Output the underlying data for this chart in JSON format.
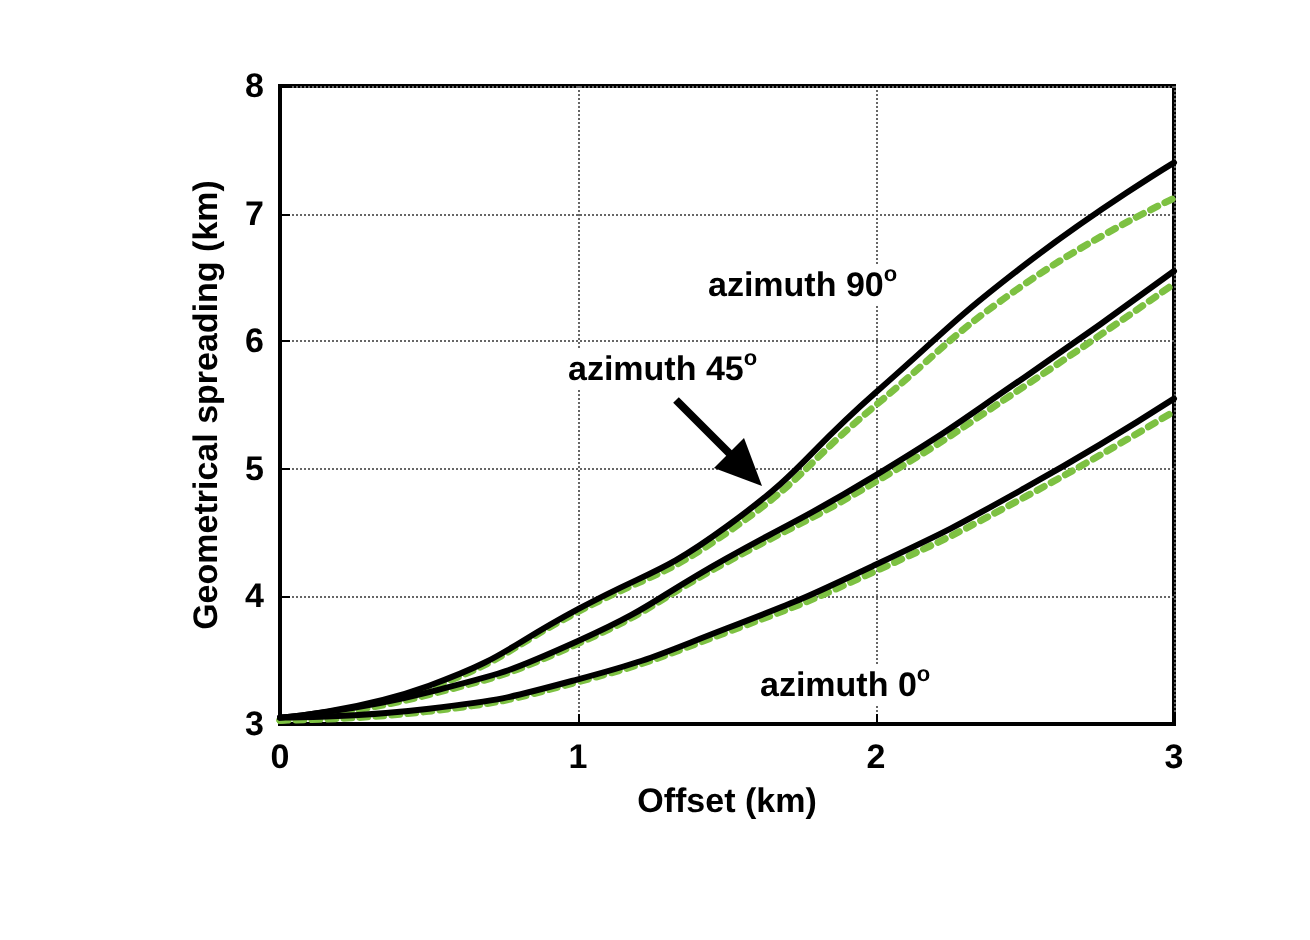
{
  "chart_data": {
    "type": "line",
    "xlabel": "Offset (km)",
    "ylabel": "Geometrical spreading (km)",
    "x": [
      0,
      0.5,
      1,
      1.5,
      2,
      2.5,
      3
    ],
    "series": [
      {
        "color": "#000000",
        "line_style": "solid",
        "values": [
          3.05,
          3.3,
          3.9,
          4.55,
          5.6,
          6.6,
          7.4
        ]
      },
      {
        "color": "#000000",
        "line_style": "solid",
        "values": [
          3.05,
          3.25,
          3.65,
          4.3,
          4.95,
          5.72,
          6.55
        ]
      },
      {
        "color": "#000000",
        "line_style": "solid",
        "values": [
          3.05,
          3.12,
          3.35,
          3.75,
          4.25,
          4.85,
          5.55
        ]
      },
      {
        "color": "#7dc142",
        "line_style": "dashed",
        "values": [
          3.03,
          3.28,
          3.88,
          4.5,
          5.5,
          6.45,
          7.12
        ]
      },
      {
        "color": "#7dc142",
        "line_style": "dashed",
        "values": [
          3.03,
          3.23,
          3.63,
          4.27,
          4.9,
          5.65,
          6.45
        ]
      },
      {
        "color": "#7dc142",
        "line_style": "dashed",
        "values": [
          3.03,
          3.1,
          3.33,
          3.72,
          4.2,
          4.78,
          5.45
        ]
      }
    ],
    "annotations": [
      "azimuth 90$^{o}$",
      "azimuth 45$^{o}$",
      "azimuth 0$^{o}$"
    ],
    "xlim": [
      0,
      3
    ],
    "xticks": [
      0,
      1,
      2,
      3
    ],
    "ylim": [
      3,
      8
    ],
    "yticks": [
      3,
      4,
      5,
      6,
      7,
      8
    ],
    "grid": true,
    "marker": "none"
  }
}
